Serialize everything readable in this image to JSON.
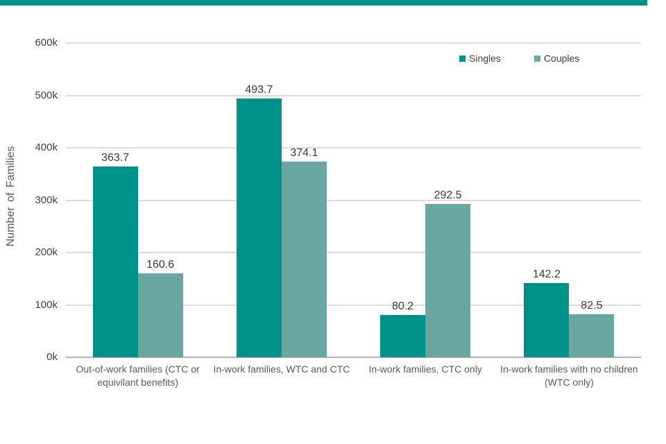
{
  "accent_bar": {
    "color": "#00928A"
  },
  "chart_data": {
    "type": "bar",
    "title": "",
    "xlabel": "",
    "ylabel": "Number of Families",
    "unit": "thousands of families (k)",
    "categories": [
      "Out-of-work families (CTC or equivilant benefits)",
      "In-work families, WTC and CTC",
      "In-work families, CTC only",
      "In-work families with no children (WTC only)"
    ],
    "series": [
      {
        "name": "Singles",
        "color": "#00928A",
        "values": [
          363.7,
          493.7,
          80.2,
          142.2
        ]
      },
      {
        "name": "Couples",
        "color": "#6AA7A0",
        "values": [
          160.6,
          374.1,
          292.5,
          82.5
        ]
      }
    ],
    "ylim": [
      0,
      600000
    ],
    "yticks": [
      "0k",
      "100k",
      "200k",
      "300k",
      "400k",
      "500k",
      "600k"
    ],
    "grid": true,
    "legend_position": "top-right",
    "bar_value_labels": true
  },
  "style_colors": {
    "gridline": "#DBDBDB",
    "axis_line": "#B3B3B3",
    "tick_text": "#404040",
    "value_text": "#3A3A3A",
    "category_text": "#595959",
    "ylabel_text": "#595959",
    "legend_text": "#404040"
  }
}
